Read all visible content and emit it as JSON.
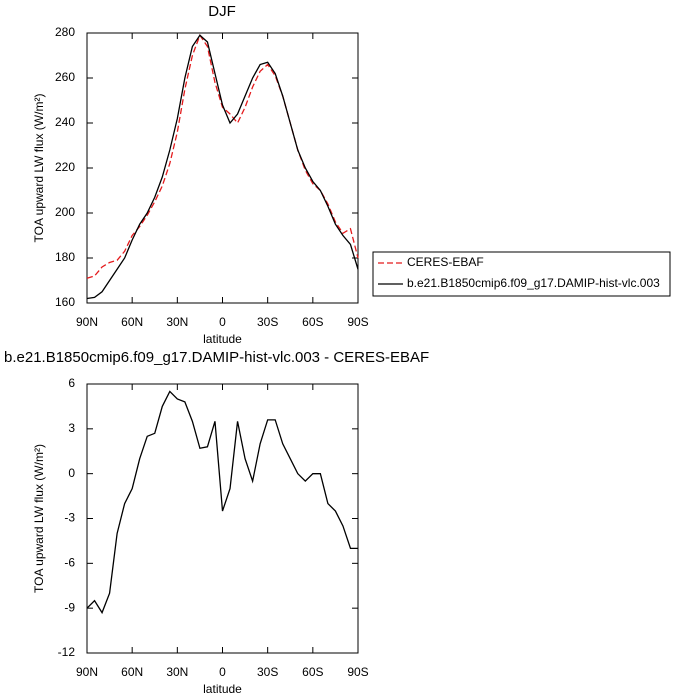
{
  "chart_data": [
    {
      "type": "line",
      "title": "DJF",
      "x_label": "latitude",
      "y_label": "TOA upward LW flux (W/m²)",
      "x": [
        90,
        85,
        80,
        75,
        70,
        65,
        60,
        55,
        50,
        45,
        40,
        35,
        30,
        25,
        20,
        15,
        10,
        5,
        0,
        -5,
        -10,
        -15,
        -20,
        -25,
        -30,
        -35,
        -40,
        -45,
        -50,
        -55,
        -60,
        -65,
        -70,
        -75,
        -80,
        -85,
        -90
      ],
      "xlim": [
        90,
        -90
      ],
      "xticks": [
        {
          "value": 90,
          "label": "90N"
        },
        {
          "value": 60,
          "label": "60N"
        },
        {
          "value": 30,
          "label": "30N"
        },
        0,
        {
          "value": -30,
          "label": "30S"
        },
        {
          "value": -60,
          "label": "60S"
        },
        {
          "value": -90,
          "label": "90S"
        }
      ],
      "ylim": [
        160,
        280
      ],
      "yticks": [
        160,
        180,
        200,
        220,
        240,
        260,
        280
      ],
      "legend": "right",
      "series": [
        {
          "name": "CERES-EBAF",
          "color": "#e41a1c",
          "dashed": true,
          "values": [
            171,
            172,
            176,
            178,
            179,
            183,
            190,
            194,
            199,
            205,
            212,
            222,
            236,
            255,
            270,
            279,
            274,
            258,
            247,
            244,
            240,
            247,
            256,
            263,
            266,
            261,
            252,
            240,
            228,
            219,
            213,
            210,
            204,
            196,
            191,
            193,
            180
          ]
        },
        {
          "name": "b.e21.B1850cmip6.f09_g17.DAMIP-hist-vlc.003",
          "color": "#000000",
          "dashed": false,
          "values": [
            162,
            162.5,
            165,
            170,
            175,
            180,
            188,
            195,
            200,
            207,
            216,
            228,
            242,
            260,
            274,
            279,
            276,
            262,
            248,
            240,
            244,
            252,
            260,
            266,
            267,
            262,
            252,
            240,
            228,
            220,
            214,
            210,
            203,
            195,
            190,
            186,
            175
          ]
        }
      ]
    },
    {
      "type": "line",
      "title": "b.e21.B1850cmip6.f09_g17.DAMIP-hist-vlc.003 - CERES-EBAF",
      "x_label": "latitude",
      "y_label": "TOA upward LW flux (W/m²)",
      "x": [
        90,
        85,
        80,
        75,
        70,
        65,
        60,
        55,
        50,
        45,
        40,
        35,
        30,
        25,
        20,
        15,
        10,
        5,
        0,
        -5,
        -10,
        -15,
        -20,
        -25,
        -30,
        -35,
        -40,
        -45,
        -50,
        -55,
        -60,
        -65,
        -70,
        -75,
        -80,
        -85,
        -90
      ],
      "xlim": [
        90,
        -90
      ],
      "xticks": [
        {
          "value": 90,
          "label": "90N"
        },
        {
          "value": 60,
          "label": "60N"
        },
        {
          "value": 30,
          "label": "30N"
        },
        0,
        {
          "value": -30,
          "label": "30S"
        },
        {
          "value": -60,
          "label": "60S"
        },
        {
          "value": -90,
          "label": "90S"
        }
      ],
      "ylim": [
        -12,
        6
      ],
      "yticks": [
        -12,
        -9,
        -6,
        -3,
        0,
        3,
        6
      ],
      "color": "#000000",
      "values": [
        -9,
        -8.5,
        -9.3,
        -8,
        -4,
        -2,
        -1,
        1,
        2.5,
        2.7,
        4.5,
        5.5,
        5,
        4.8,
        3.5,
        1.7,
        1.8,
        3.5,
        -2.5,
        -1,
        3.5,
        1,
        -0.5,
        2,
        3.6,
        3.6,
        2,
        1,
        0,
        -0.5,
        0,
        0,
        -2,
        -2.5,
        -3.5,
        -5,
        -5
      ]
    }
  ]
}
